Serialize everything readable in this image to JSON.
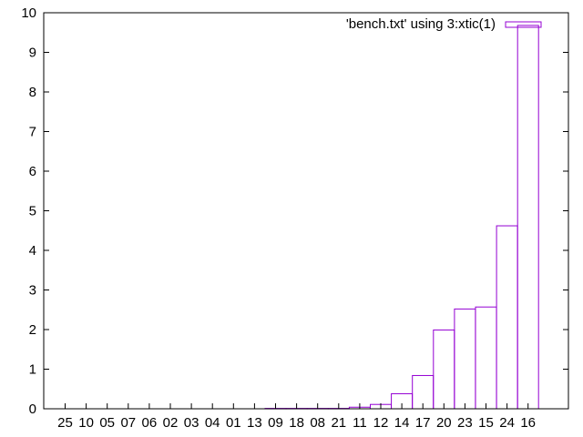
{
  "chart_data": {
    "type": "bar",
    "title": "",
    "xlabel": "",
    "ylabel": "",
    "ylim": [
      0,
      10
    ],
    "y_ticks": [
      "0",
      "1",
      "2",
      "3",
      "4",
      "5",
      "6",
      "7",
      "8",
      "9",
      "10"
    ],
    "grid": false,
    "legend_position": "top-right",
    "categories": [
      "25",
      "10",
      "05",
      "07",
      "06",
      "02",
      "03",
      "04",
      "01",
      "13",
      "09",
      "18",
      "08",
      "21",
      "11",
      "12",
      "14",
      "17",
      "20",
      "23",
      "15",
      "24",
      "16"
    ],
    "series": [
      {
        "name": "'bench.txt' using 3:xtic(1)",
        "color": "#9400d3",
        "values": [
          0,
          0,
          0,
          0,
          0,
          0,
          0,
          0,
          0,
          0,
          0.01,
          0.01,
          0.01,
          0.01,
          0.04,
          0.11,
          0.38,
          0.84,
          1.99,
          2.52,
          2.57,
          4.62,
          9.68
        ]
      }
    ]
  }
}
